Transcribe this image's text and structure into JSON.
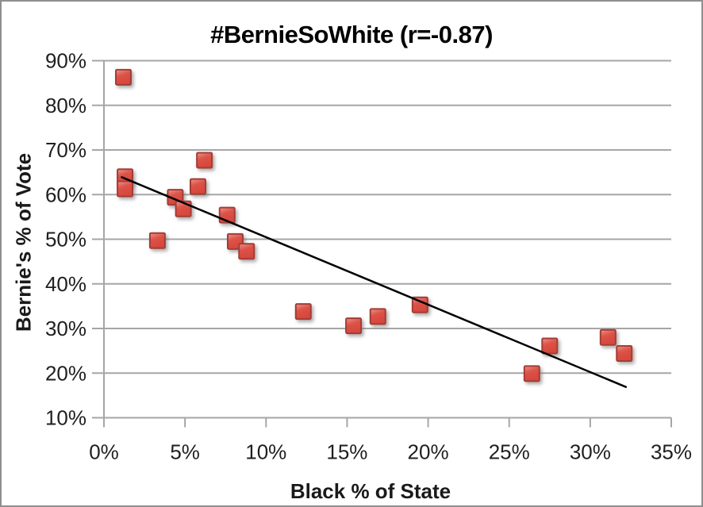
{
  "chart_data": {
    "type": "scatter",
    "title": "#BernieSoWhite (r=-0.87)",
    "xlabel": "Black % of State",
    "ylabel": "Bernie's % of Vote",
    "xlim": [
      0,
      35
    ],
    "ylim": [
      10,
      90
    ],
    "grid": "horizontal-only",
    "legend": "none",
    "x_ticks": [
      {
        "v": 0,
        "label": "0%"
      },
      {
        "v": 5,
        "label": "5%"
      },
      {
        "v": 10,
        "label": "10%"
      },
      {
        "v": 15,
        "label": "15%"
      },
      {
        "v": 20,
        "label": "20%"
      },
      {
        "v": 25,
        "label": "25%"
      },
      {
        "v": 30,
        "label": "30%"
      },
      {
        "v": 35,
        "label": "35%"
      }
    ],
    "y_ticks": [
      {
        "v": 90,
        "label": "90%"
      },
      {
        "v": 80,
        "label": "80%"
      },
      {
        "v": 70,
        "label": "70%"
      },
      {
        "v": 60,
        "label": "60%"
      },
      {
        "v": 50,
        "label": "50%"
      },
      {
        "v": 40,
        "label": "40%"
      },
      {
        "v": 30,
        "label": "30%"
      },
      {
        "v": 20,
        "label": "20%"
      },
      {
        "v": 10,
        "label": "10%"
      }
    ],
    "points": [
      {
        "x": 1.2,
        "y": 86.3
      },
      {
        "x": 1.3,
        "y": 64.0
      },
      {
        "x": 1.3,
        "y": 61.3
      },
      {
        "x": 3.3,
        "y": 49.7
      },
      {
        "x": 4.4,
        "y": 59.4
      },
      {
        "x": 4.9,
        "y": 56.8
      },
      {
        "x": 5.8,
        "y": 61.8
      },
      {
        "x": 6.2,
        "y": 67.7
      },
      {
        "x": 7.6,
        "y": 55.4
      },
      {
        "x": 8.1,
        "y": 49.5
      },
      {
        "x": 8.8,
        "y": 47.3
      },
      {
        "x": 12.3,
        "y": 33.8
      },
      {
        "x": 15.4,
        "y": 30.6
      },
      {
        "x": 16.9,
        "y": 32.7
      },
      {
        "x": 19.5,
        "y": 35.3
      },
      {
        "x": 26.4,
        "y": 19.9
      },
      {
        "x": 27.5,
        "y": 26.1
      },
      {
        "x": 31.1,
        "y": 28.0
      },
      {
        "x": 32.1,
        "y": 24.4
      }
    ],
    "trendline": {
      "x1": 1.1,
      "y1": 63.9,
      "x2": 32.2,
      "y2": 16.9
    },
    "colors": {
      "marker_fill": "#DC5348",
      "marker_fill_light": "#EF958C",
      "marker_fill_dark": "#D7463B",
      "marker_border": "#A33C35",
      "gridline": "#A6A6A6",
      "axis": "#A6A6A6",
      "tick_text": "#1f1f1f",
      "trendline": "#000000",
      "frame_border": "#8f8f8f"
    }
  }
}
